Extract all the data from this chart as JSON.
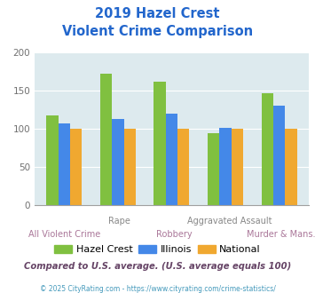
{
  "title_line1": "2019 Hazel Crest",
  "title_line2": "Violent Crime Comparison",
  "categories": [
    "All Violent Crime",
    "Rape",
    "Robbery",
    "Aggravated Assault",
    "Murder & Mans..."
  ],
  "cat_labels_top": [
    "",
    "Rape",
    "",
    "Aggravated Assault",
    ""
  ],
  "cat_labels_bot": [
    "All Violent Crime",
    "",
    "Robbery",
    "",
    "Murder & Mans..."
  ],
  "series": {
    "Hazel Crest": [
      118,
      172,
      162,
      94,
      147
    ],
    "Illinois": [
      107,
      113,
      120,
      101,
      130
    ],
    "National": [
      100,
      100,
      100,
      100,
      100
    ]
  },
  "colors": {
    "Hazel Crest": "#80c040",
    "Illinois": "#4488e8",
    "National": "#f0a830"
  },
  "ylim": [
    0,
    200
  ],
  "yticks": [
    0,
    50,
    100,
    150,
    200
  ],
  "plot_bg": "#ddeaee",
  "title_color": "#2266cc",
  "subtitle_text": "Compared to U.S. average. (U.S. average equals 100)",
  "subtitle_color": "#664466",
  "footer_text": "© 2025 CityRating.com - https://www.cityrating.com/crime-statistics/",
  "footer_color": "#4499bb",
  "grid_color": "#ffffff",
  "label_top_color": "#888888",
  "label_bot_color": "#aa7799",
  "bar_width": 0.22
}
